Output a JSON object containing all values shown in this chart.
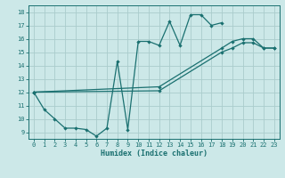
{
  "xlabel": "Humidex (Indice chaleur)",
  "background_color": "#cce8e8",
  "grid_color": "#aacccc",
  "line_color": "#1a7070",
  "xlim": [
    -0.5,
    23.5
  ],
  "ylim": [
    8.5,
    18.5
  ],
  "xticks": [
    0,
    1,
    2,
    3,
    4,
    5,
    6,
    7,
    8,
    9,
    10,
    11,
    12,
    13,
    14,
    15,
    16,
    17,
    18,
    19,
    20,
    21,
    22,
    23
  ],
  "yticks": [
    9,
    10,
    11,
    12,
    13,
    14,
    15,
    16,
    17,
    18
  ],
  "lines": [
    {
      "x": [
        0,
        1,
        2,
        3,
        4,
        5,
        6,
        7,
        8,
        9,
        10,
        11,
        12,
        13,
        14,
        15,
        16,
        17,
        18
      ],
      "y": [
        12.0,
        10.7,
        10.0,
        9.3,
        9.3,
        9.2,
        8.7,
        9.3,
        14.3,
        9.2,
        15.8,
        15.8,
        15.5,
        17.3,
        15.5,
        17.8,
        17.8,
        17.0,
        17.2
      ]
    },
    {
      "x": [
        0,
        12,
        18,
        19,
        20,
        21,
        22,
        23
      ],
      "y": [
        12.0,
        12.1,
        15.0,
        15.3,
        15.7,
        15.7,
        15.3,
        15.3
      ]
    },
    {
      "x": [
        0,
        12,
        18,
        19,
        20,
        21,
        22,
        23
      ],
      "y": [
        12.0,
        12.4,
        15.3,
        15.8,
        16.0,
        16.0,
        15.3,
        15.3
      ]
    }
  ]
}
